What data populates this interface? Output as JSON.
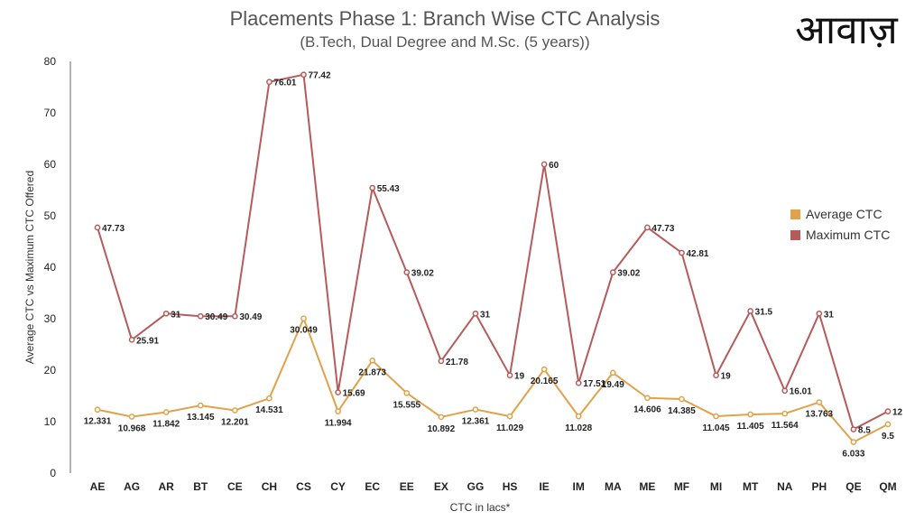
{
  "chart_data": {
    "type": "line",
    "title": "Placements Phase 1: Branch Wise CTC Analysis",
    "subtitle": "(B.Tech, Dual Degree and M.Sc. (5 years))",
    "logo_text": "आवाज़",
    "xlabel": "CTC in lacs*",
    "ylabel": "Average CTC vs Maximum CTC Offered",
    "ylim": [
      0,
      80
    ],
    "yticks": [
      "0",
      "10",
      "20",
      "30",
      "40",
      "50",
      "60",
      "70",
      "80"
    ],
    "grid": false,
    "legend_position": "right",
    "categories": [
      "AE",
      "AG",
      "AR",
      "BT",
      "CE",
      "CH",
      "CS",
      "CY",
      "EC",
      "EE",
      "EX",
      "GG",
      "HS",
      "IE",
      "IM",
      "MA",
      "ME",
      "MF",
      "MI",
      "MT",
      "NA",
      "PH",
      "QE",
      "QM"
    ],
    "series": [
      {
        "name": "Average CTC",
        "color": "#e0a24a",
        "values": [
          12.331,
          10.968,
          11.842,
          13.145,
          12.201,
          14.531,
          30.049,
          11.994,
          21.873,
          15.555,
          10.892,
          12.361,
          11.029,
          20.165,
          11.028,
          19.49,
          14.606,
          14.385,
          11.045,
          11.405,
          11.564,
          13.763,
          6.033,
          9.5
        ],
        "labels": [
          "12.331",
          "10.968",
          "11.842",
          "13.145",
          "12.201",
          "14.531",
          "30.049",
          "11.994",
          "21.873",
          "15.555",
          "10.892",
          "12.361",
          "11.029",
          "20.165",
          "11.028",
          "19.49",
          "14.606",
          "14.385",
          "11.045",
          "11.405",
          "11.564",
          "13.763",
          "6.033",
          "9.5"
        ]
      },
      {
        "name": "Maximum CTC",
        "color": "#b75a5a",
        "values": [
          47.73,
          25.91,
          31,
          30.49,
          30.49,
          76.01,
          77.42,
          15.69,
          55.43,
          39.02,
          21.78,
          31,
          19,
          60,
          17.51,
          39.02,
          47.73,
          42.81,
          19,
          31.5,
          16.01,
          31,
          8.5,
          12
        ],
        "labels": [
          "47.73",
          "25.91",
          "31",
          "30.49",
          "30.49",
          "76.01",
          "77.42",
          "15.69",
          "55.43",
          "39.02",
          "21.78",
          "31",
          "19",
          "60",
          "17.51",
          "39.02",
          "47.73",
          "42.81",
          "19",
          "31.5",
          "16.01",
          "31",
          "8.5",
          "12"
        ]
      }
    ]
  }
}
